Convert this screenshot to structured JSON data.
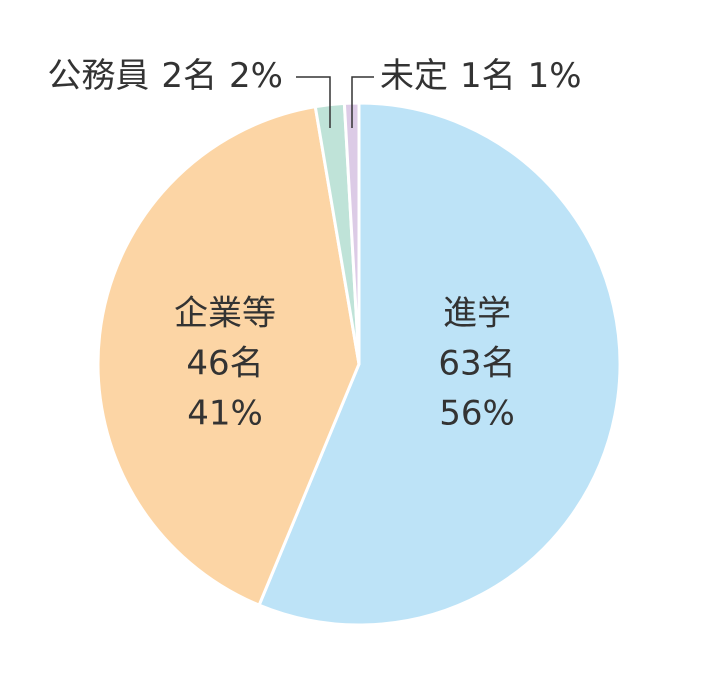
{
  "chart_data": {
    "type": "pie",
    "categories": [
      "進学",
      "企業等",
      "公務員",
      "未定"
    ],
    "values": [
      63,
      46,
      2,
      1
    ],
    "value_labels": [
      "63名",
      "46名",
      "2名",
      "1名"
    ],
    "percents": [
      56,
      41,
      2,
      1
    ],
    "percent_labels": [
      "56%",
      "41%",
      "2%",
      "1%"
    ],
    "colors": [
      "#bde3f7",
      "#fcd5a5",
      "#bfe3d8",
      "#dccbe6"
    ]
  }
}
